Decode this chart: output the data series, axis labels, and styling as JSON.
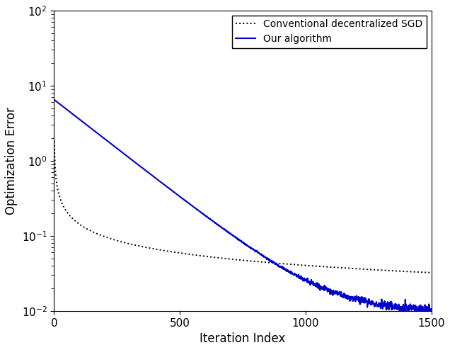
{
  "title": "",
  "xlabel": "Iteration Index",
  "ylabel": "Optimization Error",
  "xlim": [
    0,
    1500
  ],
  "ylim_log": [
    -2,
    2
  ],
  "n_points": 1500,
  "legend": [
    "Conventional decentralized SGD",
    "Our algorithm"
  ],
  "line1_color": "#000000",
  "line1_style": "dotted",
  "line1_linewidth": 1.4,
  "line2_color": "#0000cc",
  "line2_style": "solid",
  "line2_linewidth": 1.5,
  "background_color": "#ffffff",
  "seed": 42,
  "conv_start": 1.0,
  "conv_power": 0.55,
  "conv_scale": 1.8,
  "our_start": 6.5,
  "our_decay": 0.006,
  "our_floor": 0.0095,
  "our_noise_scale": 0.0008
}
